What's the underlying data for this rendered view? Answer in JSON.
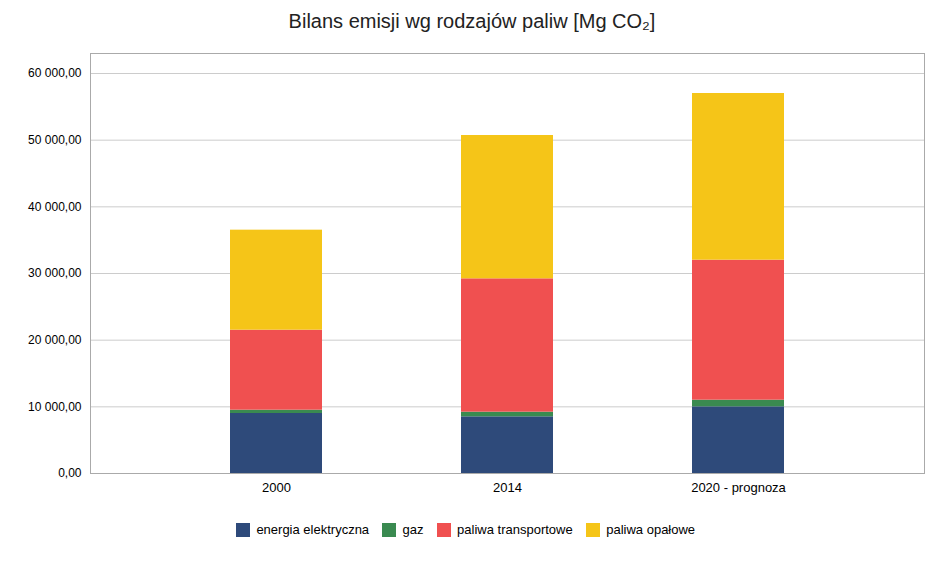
{
  "chart_data": {
    "type": "bar",
    "stacked": true,
    "title": "Bilans emisji wg rodzajów paliw [Mg CO₂]",
    "categories": [
      "2000",
      "2014",
      "2020 - prognoza"
    ],
    "series": [
      {
        "name": "energia elektryczna",
        "color": "#2E4A7A",
        "values": [
          9000,
          8500,
          10000
        ]
      },
      {
        "name": "gaz",
        "color": "#3A8A50",
        "values": [
          500,
          700,
          1000
        ]
      },
      {
        "name": "paliwa transportowe",
        "color": "#F05050",
        "values": [
          12000,
          20000,
          21000
        ]
      },
      {
        "name": "paliwa opałowe",
        "color": "#F5C518",
        "values": [
          15000,
          21500,
          25000
        ]
      }
    ],
    "ylim": [
      0,
      63000
    ],
    "yticks": [
      {
        "value": 0,
        "label": "0,00"
      },
      {
        "value": 10000,
        "label": "10 000,00"
      },
      {
        "value": 20000,
        "label": "20 000,00"
      },
      {
        "value": 30000,
        "label": "30 000,00"
      },
      {
        "value": 40000,
        "label": "40 000,00"
      },
      {
        "value": 50000,
        "label": "50 000,00"
      },
      {
        "value": 60000,
        "label": "60 000,00"
      }
    ],
    "grid": true,
    "legend": "bottom"
  }
}
